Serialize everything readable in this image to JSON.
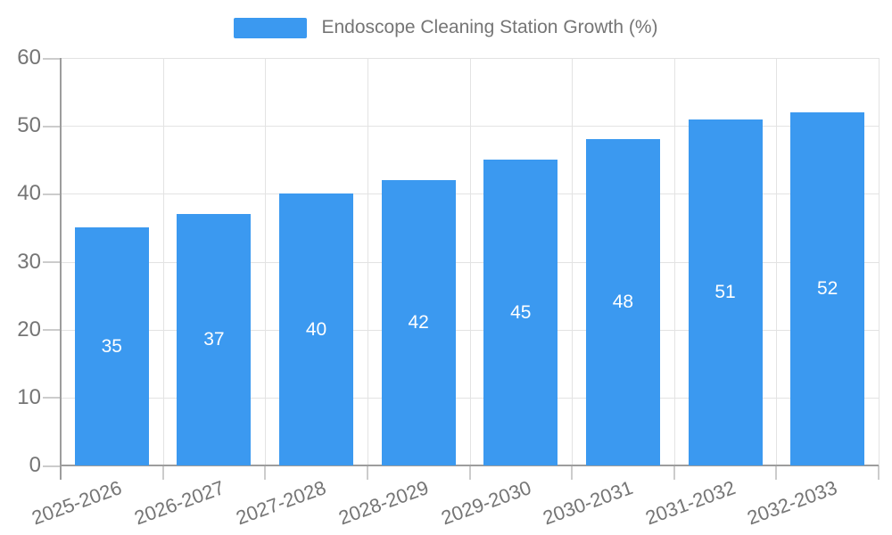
{
  "legend": {
    "label": "Endoscope Cleaning Station Growth (%)"
  },
  "chart_data": {
    "type": "bar",
    "title": "Endoscope Cleaning Station Growth (%)",
    "categories": [
      "2025-2026",
      "2026-2027",
      "2027-2028",
      "2028-2029",
      "2029-2030",
      "2030-2031",
      "2031-2032",
      "2032-2033"
    ],
    "values": [
      35,
      37,
      40,
      42,
      45,
      48,
      51,
      52
    ],
    "value_labels": [
      "35",
      "37",
      "40",
      "42",
      "45",
      "48",
      "51",
      "52"
    ],
    "xlabel": "",
    "ylabel": "",
    "ylim": [
      0,
      60
    ],
    "yticks": [
      0,
      10,
      20,
      30,
      40,
      50,
      60
    ],
    "grid": true,
    "legend_position": "top",
    "colors": {
      "bar": "#3b99f0",
      "grid": "#e3e3e3",
      "axis": "#9d9d9d",
      "tick": "#cccccc",
      "tick_label": "#757575",
      "value_label": "#ffffff",
      "background": "#ffffff"
    }
  }
}
